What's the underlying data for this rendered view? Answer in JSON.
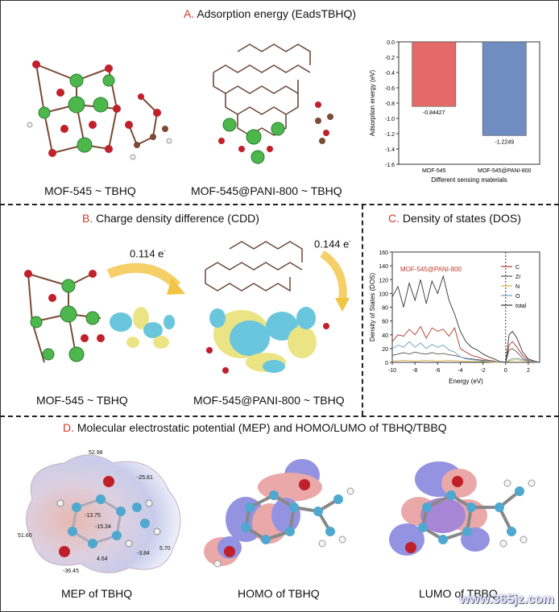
{
  "panelA": {
    "letter": "A.",
    "title": "Adsorption energy (EadsTBHQ)",
    "left_caption": "MOF-545 ~ TBHQ",
    "mid_caption": "MOF-545@PANI-800 ~ TBHQ"
  },
  "panelB": {
    "letter": "B.",
    "title": "Charge density difference (CDD)",
    "left_caption": "MOF-545 ~ TBHQ",
    "right_caption": "MOF-545@PANI-800 ~ TBHQ",
    "charge_left": "0.114 e",
    "charge_right": "0.144 e",
    "charge_sup": "-"
  },
  "panelC": {
    "letter": "C.",
    "title": "Density of states (DOS)"
  },
  "panelD": {
    "letter": "D.",
    "title": "Molecular electrostatic potential (MEP) and HOMO/LUMO of TBHQ/TBBQ",
    "mep_caption": "MEP of TBHQ",
    "homo_caption": "HOMO of TBHQ",
    "lumo_caption": "LUMO of TBBQ",
    "mep_values": [
      "52.98",
      "-25.81",
      "-13.75",
      "-15.34",
      "51.60",
      "-3.84",
      "5.70",
      "4.64",
      "-36.45"
    ]
  },
  "watermark": "www.365jz.com",
  "colors": {
    "accent_red": "#d1392b",
    "bar_mof": "#e46a6a",
    "bar_pani": "#6f8dc0",
    "zr_green": "#4cb84c",
    "oxygen_red": "#c0202a",
    "carbon_brown": "#7a4b35",
    "cdd_yellow": "#e8e070",
    "cdd_cyan": "#4fbdd6"
  },
  "chart_data": [
    {
      "type": "bar",
      "categories": [
        "MOF-545",
        "MOF-545@PANI-800"
      ],
      "values": [
        -0.84427,
        -1.2249
      ],
      "value_labels": [
        "-0.84427",
        "-1.2249"
      ],
      "xlabel": "Different sensing materials",
      "ylabel": "Adsorption energy (eV)",
      "ylim": [
        -1.6,
        0.0
      ],
      "yticks": [
        "0.0",
        "-0.2",
        "-0.4",
        "-0.6",
        "-0.8",
        "-1.0",
        "-1.2",
        "-1.4",
        "-1.6"
      ],
      "colors": [
        "#e46a6a",
        "#6f8dc0"
      ]
    },
    {
      "type": "line",
      "title": "MOF-545@PANI-800",
      "xlabel": "Energy (eV)",
      "ylabel": "Density of States (DOS)",
      "xlim": [
        -10,
        3
      ],
      "ylim": [
        0,
        160
      ],
      "xticks": [
        "-10",
        "-8",
        "-6",
        "-4",
        "-2",
        "0",
        "2"
      ],
      "yticks": [
        "0",
        "20",
        "40",
        "60",
        "80",
        "100",
        "120",
        "140",
        "160"
      ],
      "fermi_level": 0,
      "series": [
        {
          "name": "C",
          "color": "#b03a2e",
          "x": [
            -10,
            -9.5,
            -9,
            -8.5,
            -8,
            -7.5,
            -7,
            -6.5,
            -6,
            -5.5,
            -5,
            -4.5,
            -4,
            -3.5,
            -3,
            -2.5,
            -2,
            -1.5,
            -1,
            -0.5,
            0,
            0.3,
            0.6,
            1,
            1.5,
            2,
            2.5,
            3
          ],
          "y": [
            30,
            40,
            38,
            48,
            40,
            52,
            35,
            50,
            45,
            48,
            38,
            50,
            20,
            15,
            10,
            8,
            5,
            3,
            2,
            0,
            0,
            25,
            30,
            22,
            10,
            3,
            1,
            0
          ]
        },
        {
          "name": "Zr",
          "color": "#555555",
          "x": [
            -10,
            -9.5,
            -9,
            -8.5,
            -8,
            -7.5,
            -7,
            -6.5,
            -6,
            -5.5,
            -5,
            -4.5,
            -4,
            -3.5,
            -3,
            -2.5,
            -2,
            -1.5,
            -1,
            -0.5,
            0,
            0.3,
            0.6,
            1,
            1.5,
            2,
            2.5,
            3
          ],
          "y": [
            10,
            12,
            14,
            12,
            15,
            13,
            12,
            14,
            12,
            13,
            11,
            10,
            8,
            6,
            5,
            4,
            3,
            2,
            1,
            0,
            0,
            18,
            20,
            15,
            6,
            2,
            1,
            0
          ]
        },
        {
          "name": "N",
          "color": "#e0b040",
          "x": [
            -10,
            -9,
            -8,
            -7,
            -6,
            -5,
            -4,
            -3,
            -2,
            -1,
            0,
            0.5,
            1,
            2,
            3
          ],
          "y": [
            2,
            3,
            2,
            3,
            2,
            3,
            2,
            1,
            1,
            0,
            0,
            3,
            4,
            1,
            0
          ]
        },
        {
          "name": "O",
          "color": "#6aa0c0",
          "x": [
            -10,
            -9.5,
            -9,
            -8.5,
            -8,
            -7.5,
            -7,
            -6.5,
            -6,
            -5.5,
            -5,
            -4.5,
            -4,
            -3.5,
            -3,
            -2,
            -1,
            0,
            0.5,
            1,
            2,
            3
          ],
          "y": [
            20,
            25,
            22,
            30,
            22,
            28,
            20,
            26,
            22,
            25,
            18,
            15,
            8,
            5,
            4,
            2,
            1,
            0,
            5,
            6,
            2,
            0
          ]
        },
        {
          "name": "total",
          "color": "#333333",
          "x": [
            -10,
            -9.5,
            -9,
            -8.5,
            -8,
            -7.5,
            -7,
            -6.5,
            -6,
            -5.5,
            -5,
            -4.5,
            -4,
            -3.5,
            -3,
            -2.5,
            -2,
            -1.5,
            -1,
            -0.5,
            0,
            0.3,
            0.6,
            1,
            1.5,
            2,
            2.5,
            3
          ],
          "y": [
            95,
            110,
            80,
            115,
            90,
            120,
            85,
            118,
            100,
            125,
            90,
            70,
            45,
            30,
            22,
            18,
            12,
            8,
            5,
            1,
            0,
            40,
            45,
            35,
            15,
            5,
            2,
            0
          ]
        }
      ],
      "legend": [
        "C",
        "Zr",
        "N",
        "O",
        "total"
      ],
      "legend_position": "top-right"
    }
  ]
}
